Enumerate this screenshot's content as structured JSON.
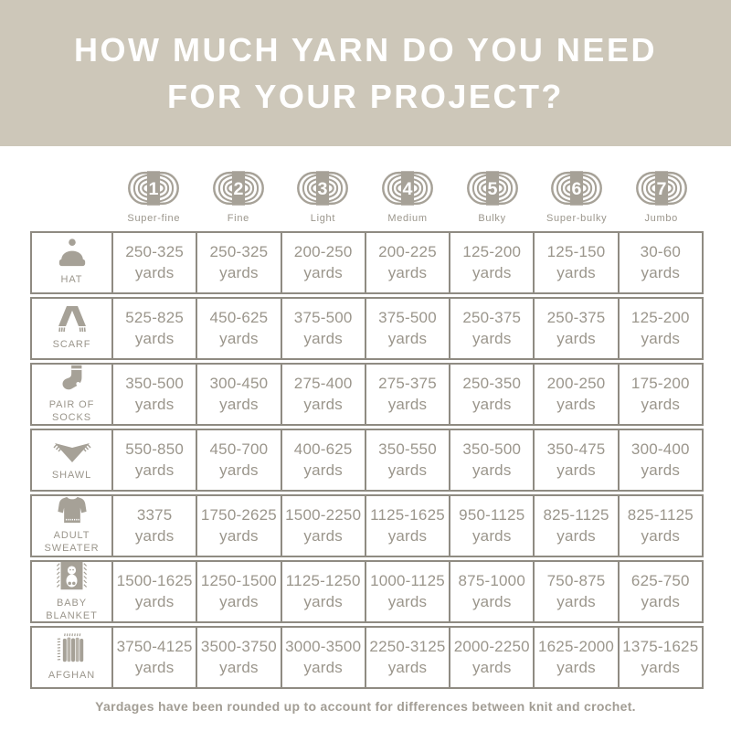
{
  "display": {
    "title_line1": "HOW MUCH YARN DO YOU NEED",
    "title_line2": "FOR YOUR PROJECT?"
  },
  "colors": {
    "header_bg": "#cdc7b9",
    "text": "#9b968c",
    "icon": "#a6a197",
    "icon_light": "#b8b3aa",
    "border": "#8f8b82",
    "title_text": "#ffffff",
    "footer_text": "#a29d94"
  },
  "chart_data": {
    "type": "table",
    "title": "HOW MUCH YARN DO YOU NEED FOR YOUR PROJECT?",
    "unit": "yards",
    "footnote": "Yardages have been rounded up to account for differences between knit and crochet.",
    "column_headers": [
      {
        "number": "1",
        "label": "Super-fine",
        "icon": "yarn-skein-icon"
      },
      {
        "number": "2",
        "label": "Fine",
        "icon": "yarn-skein-icon"
      },
      {
        "number": "3",
        "label": "Light",
        "icon": "yarn-skein-icon"
      },
      {
        "number": "4",
        "label": "Medium",
        "icon": "yarn-skein-icon"
      },
      {
        "number": "5",
        "label": "Bulky",
        "icon": "yarn-skein-icon"
      },
      {
        "number": "6",
        "label": "Super-bulky",
        "icon": "yarn-skein-icon"
      },
      {
        "number": "7",
        "label": "Jumbo",
        "icon": "yarn-skein-icon"
      }
    ],
    "rows": [
      {
        "project": "HAT",
        "icon": "hat-icon",
        "values": [
          "250-325",
          "250-325",
          "200-250",
          "200-225",
          "125-200",
          "125-150",
          "30-60"
        ]
      },
      {
        "project": "SCARF",
        "icon": "scarf-icon",
        "values": [
          "525-825",
          "450-625",
          "375-500",
          "375-500",
          "250-375",
          "250-375",
          "125-200"
        ]
      },
      {
        "project": "PAIR OF SOCKS",
        "icon": "sock-icon",
        "values": [
          "350-500",
          "300-450",
          "275-400",
          "275-375",
          "250-350",
          "200-250",
          "175-200"
        ]
      },
      {
        "project": "SHAWL",
        "icon": "shawl-icon",
        "values": [
          "550-850",
          "450-700",
          "400-625",
          "350-550",
          "350-500",
          "350-475",
          "300-400"
        ]
      },
      {
        "project": "ADULT SWEATER",
        "icon": "sweater-icon",
        "values": [
          "3375",
          "1750-2625",
          "1500-2250",
          "1125-1625",
          "950-1125",
          "825-1125",
          "825-1125"
        ]
      },
      {
        "project": "BABY BLANKET",
        "icon": "baby-blanket-icon",
        "values": [
          "1500-1625",
          "1250-1500",
          "1125-1250",
          "1000-1125",
          "875-1000",
          "750-875",
          "625-750"
        ]
      },
      {
        "project": "AFGHAN",
        "icon": "afghan-icon",
        "values": [
          "3750-4125",
          "3500-3750",
          "3000-3500",
          "2250-3125",
          "2000-2250",
          "1625-2000",
          "1375-1625"
        ]
      }
    ]
  }
}
